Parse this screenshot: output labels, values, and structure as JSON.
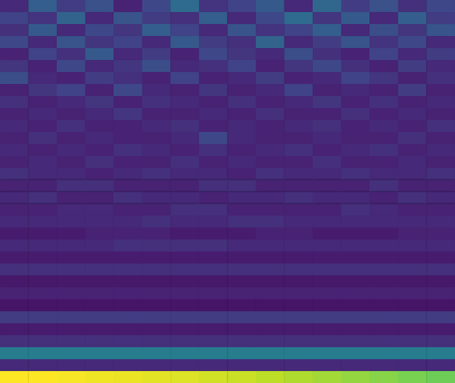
{
  "chart_data": {
    "type": "heatmap",
    "color": "viridis",
    "tick_labels": false,
    "zlim": [
      0,
      1
    ],
    "cells": [
      [
        0.12,
        0.3,
        0.18,
        0.25,
        0.1,
        0.22,
        0.35,
        0.15,
        0.2,
        0.28,
        0.12,
        0.33,
        0.18,
        0.25,
        0.14,
        0.22
      ],
      [
        0.2,
        0.15,
        0.32,
        0.12,
        0.26,
        0.18,
        0.14,
        0.3,
        0.12,
        0.22,
        0.35,
        0.16,
        0.28,
        0.12,
        0.3,
        0.18
      ],
      [
        0.14,
        0.28,
        0.12,
        0.22,
        0.16,
        0.3,
        0.2,
        0.12,
        0.26,
        0.15,
        0.2,
        0.3,
        0.12,
        0.24,
        0.16,
        0.26
      ],
      [
        0.22,
        0.12,
        0.26,
        0.16,
        0.2,
        0.12,
        0.28,
        0.18,
        0.14,
        0.32,
        0.12,
        0.18,
        0.26,
        0.15,
        0.22,
        0.12
      ],
      [
        0.1,
        0.2,
        0.14,
        0.28,
        0.12,
        0.18,
        0.1,
        0.22,
        0.16,
        0.12,
        0.24,
        0.14,
        0.1,
        0.2,
        0.12,
        0.18
      ],
      [
        0.16,
        0.1,
        0.22,
        0.12,
        0.16,
        0.24,
        0.12,
        0.14,
        0.2,
        0.1,
        0.16,
        0.22,
        0.14,
        0.1,
        0.18,
        0.12
      ],
      [
        0.24,
        0.12,
        0.1,
        0.18,
        0.14,
        0.1,
        0.2,
        0.1,
        0.12,
        0.18,
        0.1,
        0.12,
        0.2,
        0.16,
        0.1,
        0.14
      ],
      [
        0.1,
        0.16,
        0.2,
        0.1,
        0.22,
        0.12,
        0.1,
        0.16,
        0.1,
        0.12,
        0.2,
        0.1,
        0.12,
        0.1,
        0.18,
        0.1
      ],
      [
        0.14,
        0.1,
        0.12,
        0.16,
        0.1,
        0.14,
        0.12,
        0.1,
        0.14,
        0.1,
        0.12,
        0.16,
        0.1,
        0.14,
        0.1,
        0.12
      ],
      [
        0.1,
        0.12,
        0.1,
        0.12,
        0.16,
        0.1,
        0.1,
        0.12,
        0.1,
        0.14,
        0.1,
        0.1,
        0.14,
        0.1,
        0.12,
        0.1
      ],
      [
        0.12,
        0.1,
        0.14,
        0.1,
        0.1,
        0.12,
        0.14,
        0.1,
        0.12,
        0.1,
        0.12,
        0.14,
        0.1,
        0.12,
        0.1,
        0.14
      ],
      [
        0.1,
        0.14,
        0.1,
        0.12,
        0.1,
        0.1,
        0.12,
        0.22,
        0.12,
        0.1,
        0.1,
        0.12,
        0.1,
        0.1,
        0.14,
        0.1
      ],
      [
        0.12,
        0.1,
        0.12,
        0.1,
        0.14,
        0.12,
        0.1,
        0.14,
        0.1,
        0.12,
        0.14,
        0.1,
        0.12,
        0.14,
        0.1,
        0.12
      ],
      [
        0.1,
        0.12,
        0.1,
        0.14,
        0.1,
        0.1,
        0.14,
        0.1,
        0.12,
        0.1,
        0.1,
        0.14,
        0.1,
        0.1,
        0.12,
        0.1
      ],
      [
        0.14,
        0.12,
        0.12,
        0.1,
        0.12,
        0.14,
        0.12,
        0.12,
        0.1,
        0.14,
        0.12,
        0.12,
        0.14,
        0.12,
        0.12,
        0.14
      ],
      [
        0.1,
        0.1,
        0.14,
        0.14,
        0.1,
        0.1,
        0.1,
        0.14,
        0.14,
        0.1,
        0.1,
        0.1,
        0.1,
        0.14,
        0.1,
        0.1
      ],
      [
        0.12,
        0.14,
        0.1,
        0.1,
        0.14,
        0.12,
        0.12,
        0.1,
        0.12,
        0.12,
        0.14,
        0.12,
        0.12,
        0.1,
        0.14,
        0.12
      ],
      [
        0.1,
        0.1,
        0.12,
        0.12,
        0.1,
        0.1,
        0.14,
        0.14,
        0.1,
        0.1,
        0.1,
        0.1,
        0.14,
        0.12,
        0.1,
        0.1
      ],
      [
        0.12,
        0.12,
        0.12,
        0.12,
        0.12,
        0.14,
        0.12,
        0.12,
        0.14,
        0.14,
        0.12,
        0.12,
        0.12,
        0.12,
        0.12,
        0.12
      ],
      [
        0.08,
        0.08,
        0.08,
        0.1,
        0.1,
        0.1,
        0.08,
        0.08,
        0.08,
        0.1,
        0.1,
        0.08,
        0.08,
        0.08,
        0.1,
        0.1
      ],
      [
        0.12,
        0.12,
        0.12,
        0.12,
        0.14,
        0.14,
        0.14,
        0.14,
        0.12,
        0.12,
        0.12,
        0.12,
        0.12,
        0.12,
        0.12,
        0.12
      ],
      [
        0.08,
        0.08,
        0.08,
        0.08,
        0.08,
        0.08,
        0.08,
        0.08,
        0.08,
        0.08,
        0.08,
        0.08,
        0.08,
        0.08,
        0.08,
        0.08
      ],
      [
        0.14,
        0.14,
        0.14,
        0.14,
        0.14,
        0.14,
        0.14,
        0.14,
        0.14,
        0.14,
        0.14,
        0.14,
        0.14,
        0.14,
        0.14,
        0.14
      ],
      [
        0.07,
        0.07,
        0.07,
        0.07,
        0.07,
        0.07,
        0.07,
        0.07,
        0.07,
        0.07,
        0.07,
        0.07,
        0.07,
        0.07,
        0.07,
        0.07
      ],
      [
        0.1,
        0.1,
        0.1,
        0.1,
        0.1,
        0.1,
        0.1,
        0.1,
        0.1,
        0.1,
        0.1,
        0.1,
        0.1,
        0.1,
        0.1,
        0.1
      ],
      [
        0.06,
        0.06,
        0.06,
        0.06,
        0.06,
        0.06,
        0.06,
        0.06,
        0.06,
        0.06,
        0.06,
        0.06,
        0.06,
        0.06,
        0.06,
        0.06
      ],
      [
        0.18,
        0.18,
        0.18,
        0.18,
        0.18,
        0.18,
        0.18,
        0.18,
        0.18,
        0.18,
        0.18,
        0.18,
        0.18,
        0.18,
        0.18,
        0.18
      ],
      [
        0.08,
        0.08,
        0.08,
        0.08,
        0.08,
        0.08,
        0.08,
        0.08,
        0.08,
        0.08,
        0.08,
        0.08,
        0.08,
        0.08,
        0.08,
        0.08
      ],
      [
        0.14,
        0.14,
        0.14,
        0.14,
        0.14,
        0.14,
        0.14,
        0.14,
        0.14,
        0.14,
        0.14,
        0.14,
        0.14,
        0.14,
        0.14,
        0.14
      ],
      [
        0.42,
        0.42,
        0.42,
        0.42,
        0.42,
        0.42,
        0.42,
        0.42,
        0.42,
        0.42,
        0.42,
        0.42,
        0.42,
        0.42,
        0.42,
        0.42
      ],
      [
        0.12,
        0.12,
        0.12,
        0.12,
        0.12,
        0.12,
        0.12,
        0.12,
        0.12,
        0.12,
        0.12,
        0.12,
        0.12,
        0.12,
        0.12,
        0.12
      ],
      [
        1.0,
        1.0,
        0.99,
        0.98,
        0.97,
        0.96,
        0.95,
        0.93,
        0.92,
        0.9,
        0.88,
        0.86,
        0.84,
        0.82,
        0.8,
        0.78
      ]
    ]
  }
}
